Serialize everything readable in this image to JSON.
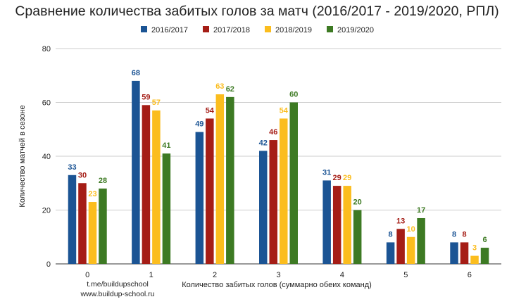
{
  "chart_data": {
    "type": "bar",
    "title": "Сравнение количества забитых голов за матч (2016/2017 - 2019/2020, РПЛ)",
    "xlabel": "Количество забитых голов (суммарно обеих команд)",
    "ylabel": "Количество матчей в сезоне",
    "categories": [
      "0",
      "1",
      "2",
      "3",
      "4",
      "5",
      "6"
    ],
    "ylim": [
      0,
      80
    ],
    "yticks": [
      0,
      20,
      40,
      60,
      80
    ],
    "grid": true,
    "legend_position": "top",
    "series": [
      {
        "name": "2016/2017",
        "color": "#1b5494",
        "values": [
          33,
          68,
          49,
          42,
          31,
          8,
          8
        ]
      },
      {
        "name": "2017/2018",
        "color": "#a51d16",
        "values": [
          30,
          59,
          54,
          46,
          29,
          13,
          8
        ]
      },
      {
        "name": "2018/2019",
        "color": "#fbbd1e",
        "values": [
          23,
          57,
          63,
          54,
          29,
          10,
          3
        ]
      },
      {
        "name": "2019/2020",
        "color": "#3d7a23",
        "values": [
          28,
          41,
          62,
          60,
          20,
          17,
          6
        ]
      }
    ]
  },
  "credits": [
    "t.me/buildupschool",
    "www.buildup-school.ru"
  ]
}
